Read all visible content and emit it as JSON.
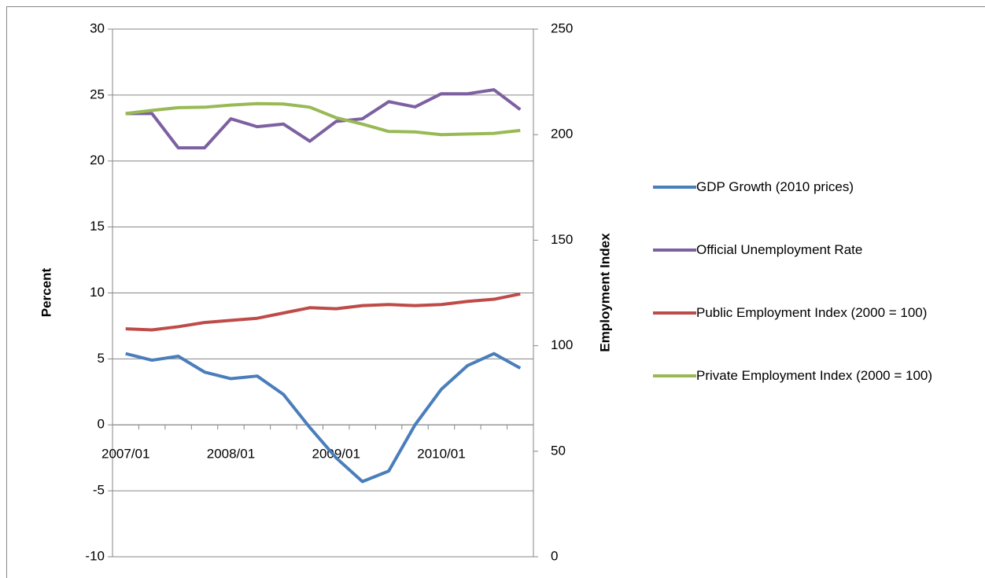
{
  "chart_data": {
    "type": "line",
    "categories": [
      "2007/01",
      null,
      null,
      null,
      "2008/01",
      null,
      null,
      null,
      "2009/01",
      null,
      null,
      null,
      "2010/01",
      null,
      null,
      null
    ],
    "ylabel": "Percent",
    "y2label": "Employment Index",
    "ylim": [
      -10,
      30
    ],
    "yticks": [
      -10,
      -5,
      0,
      5,
      10,
      15,
      20,
      25,
      30
    ],
    "y2lim": [
      0,
      250
    ],
    "y2ticks": [
      0,
      50,
      100,
      150,
      200,
      250
    ],
    "grid": true,
    "legend": "right",
    "series": [
      {
        "name": "GDP Growth (2010 prices)",
        "color": "#4a7ebb",
        "values": [
          5.4,
          4.9,
          5.2,
          4.0,
          3.5,
          3.7,
          2.3,
          -0.2,
          -2.5,
          -4.3,
          -3.5,
          0.0,
          2.7,
          4.5,
          5.4,
          4.3
        ]
      },
      {
        "name": "Official Unemployment Rate",
        "color": "#7d60a0",
        "values": [
          23.6,
          23.6,
          21.0,
          21.0,
          23.2,
          22.6,
          22.8,
          21.5,
          23.0,
          23.2,
          24.5,
          24.1,
          25.1,
          25.1,
          25.4,
          23.9
        ]
      },
      {
        "name": "Public Employment Index (2000 = 100)",
        "color": "#be4b48",
        "axis": "y2",
        "values": [
          108,
          107.5,
          109,
          111,
          112,
          113,
          115.5,
          118,
          117.5,
          119,
          119.5,
          119,
          119.5,
          121,
          122,
          124.5
        ]
      },
      {
        "name": "Private Employment Index (2000 = 100)",
        "color": "#98b954",
        "axis": "y2",
        "values": [
          210,
          211.5,
          212.8,
          213,
          214,
          214.7,
          214.5,
          213,
          208,
          205,
          201.5,
          201.3,
          200,
          200.3,
          200.6,
          202
        ]
      }
    ]
  }
}
